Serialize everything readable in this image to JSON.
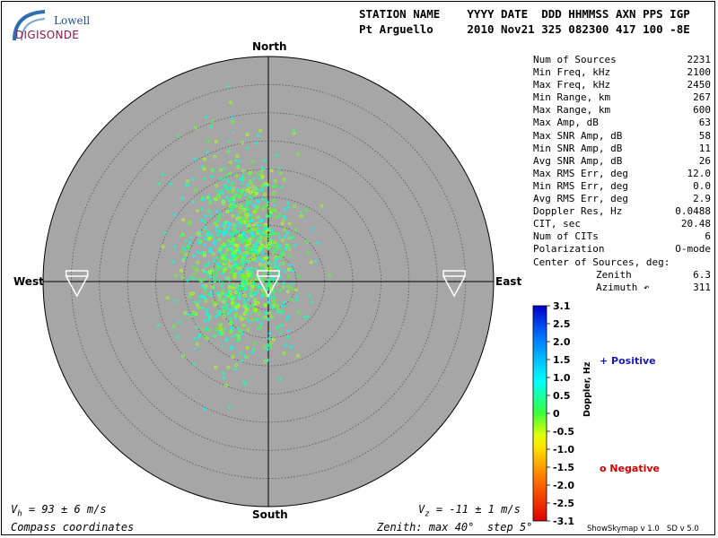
{
  "logo": {
    "top": "Lowell",
    "main": "DIGISONDE"
  },
  "header": {
    "line1": "STATION NAME    YYYY DATE  DDD HHMMSS AXN PPS IGP",
    "line2": "Pt Arguello     2010 Nov21 325 082300 417 100 -8E"
  },
  "stats": [
    {
      "label": "Num of Sources",
      "value": "2231"
    },
    {
      "label": "Min Freq, kHz",
      "value": "2100"
    },
    {
      "label": "Max Freq, kHz",
      "value": "2450"
    },
    {
      "label": "Min Range, km",
      "value": "267"
    },
    {
      "label": "Max Range, km",
      "value": "600"
    },
    {
      "label": "Max Amp, dB",
      "value": "63"
    },
    {
      "label": "Max SNR Amp, dB",
      "value": "58"
    },
    {
      "label": "Min SNR Amp, dB",
      "value": "11"
    },
    {
      "label": "Avg SNR Amp, dB",
      "value": "26"
    },
    {
      "label": "Max RMS Err, deg",
      "value": "12.0"
    },
    {
      "label": "Min RMS Err, deg",
      "value": "0.0"
    },
    {
      "label": "Avg RMS Err, deg",
      "value": "2.9"
    },
    {
      "label": "Doppler Res, Hz",
      "value": "0.0488"
    },
    {
      "label": "CIT, sec",
      "value": "20.48"
    },
    {
      "label": "Num of CITs",
      "value": "6"
    },
    {
      "label": "Polarization",
      "value": "O-mode"
    },
    {
      "label": "Center of Sources, deg:",
      "value": ""
    },
    {
      "label": "Zenith",
      "value": "6.3",
      "indent": true
    },
    {
      "label": "Azimuth ↶",
      "value": "311",
      "indent": true
    }
  ],
  "directions": {
    "north": "North",
    "south": "South",
    "east": "East",
    "west": "West"
  },
  "footer": {
    "vh": "V",
    "vh_sub": "h",
    "vh_text": " = 93 ± 6 m/s",
    "vz": "V",
    "vz_sub": "z",
    "vz_text": " = -11 ± 1 m/s",
    "compass": "Compass coordinates",
    "zenith": "Zenith: max 40°  step 5°",
    "credit": "ShowSkymap v 1.0   SD v 5.0"
  },
  "legend": {
    "positive": "+ Positive",
    "negative": "o Negative",
    "colorbar_label": "Doppler, Hz"
  },
  "colors": {
    "plot_bg": "#a6a6a6",
    "grid": "#555555",
    "positive": "#1a1ab4",
    "negative": "#cc0000"
  },
  "chart_data": {
    "type": "scatter",
    "subtype": "polar skymap",
    "radial_max_deg": 40,
    "radial_step_deg": 5,
    "grid": true,
    "center_of_sources": {
      "zenith_deg": 6.3,
      "azimuth_deg": 311
    },
    "cluster_spread_deg": 9,
    "num_sources": 2231,
    "velocity_arrows": [
      {
        "azimuth_deg": 270,
        "zenith_deg": 34
      },
      {
        "azimuth_deg": 0,
        "zenith_deg": 0
      },
      {
        "azimuth_deg": 90,
        "zenith_deg": 33
      }
    ],
    "colorbar": {
      "label": "Doppler, Hz",
      "min": -3.1,
      "max": 3.1,
      "ticks": [
        "3.1",
        "2.5",
        "2.0",
        "1.5",
        "1.0",
        "0.5",
        "0",
        "-0.5",
        "-1.0",
        "-1.5",
        "-2.0",
        "-2.5",
        "-3.1"
      ]
    }
  }
}
